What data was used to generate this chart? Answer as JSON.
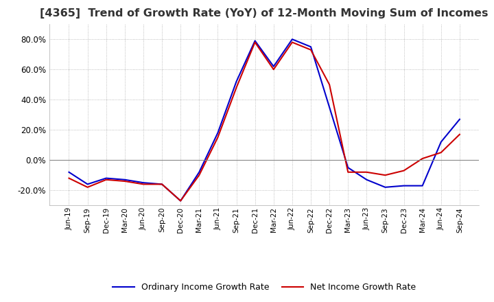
{
  "title": "[4365]  Trend of Growth Rate (YoY) of 12-Month Moving Sum of Incomes",
  "title_fontsize": 11.5,
  "ylim": [
    -30,
    90
  ],
  "yticks": [
    -20.0,
    0.0,
    20.0,
    40.0,
    60.0,
    80.0
  ],
  "legend_labels": [
    "Ordinary Income Growth Rate",
    "Net Income Growth Rate"
  ],
  "background_color": "#ffffff",
  "plot_bg_color": "#ffffff",
  "grid_color": "#aaaaaa",
  "x_labels": [
    "Jun-19",
    "Sep-19",
    "Dec-19",
    "Mar-20",
    "Jun-20",
    "Sep-20",
    "Dec-20",
    "Mar-21",
    "Jun-21",
    "Sep-21",
    "Dec-21",
    "Mar-22",
    "Jun-22",
    "Sep-22",
    "Dec-22",
    "Mar-23",
    "Jun-23",
    "Sep-23",
    "Dec-23",
    "Mar-24",
    "Jun-24",
    "Sep-24"
  ],
  "ordinary_income": [
    -8,
    -16,
    -12,
    -13,
    -15,
    -16,
    -27,
    -8,
    18,
    52,
    79,
    62,
    80,
    75,
    35,
    -5,
    -13,
    -18,
    -17,
    -17,
    12,
    27
  ],
  "net_income": [
    -12,
    -18,
    -13,
    -14,
    -16,
    -16,
    -27,
    -10,
    15,
    48,
    78,
    60,
    78,
    73,
    50,
    -8,
    -8,
    -10,
    -7,
    1,
    5,
    17
  ],
  "ordinary_color": "#0000cc",
  "net_color": "#cc0000",
  "line_width": 1.5
}
